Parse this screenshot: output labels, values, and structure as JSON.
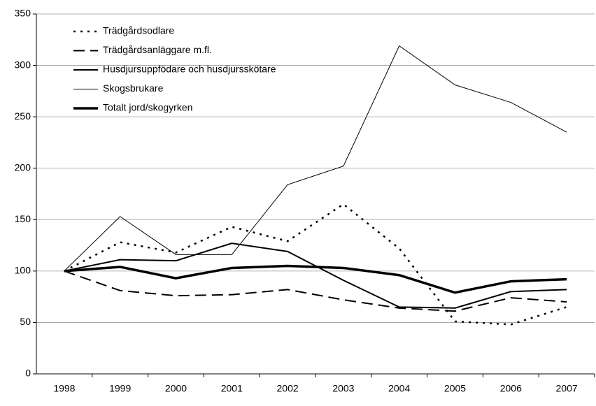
{
  "chart_data": {
    "type": "line",
    "categories": [
      "1998",
      "1999",
      "2000",
      "2001",
      "2002",
      "2003",
      "2004",
      "2005",
      "2006",
      "2007"
    ],
    "series": [
      {
        "name": "Trädgårdsodlare",
        "color": "#000000",
        "dash": "dotted",
        "width": 2.5,
        "values": [
          100,
          128,
          118,
          143,
          129,
          165,
          122,
          51,
          48,
          65
        ]
      },
      {
        "name": "Trädgårdsanläggare m.fl.",
        "color": "#000000",
        "dash": "dashed",
        "width": 2,
        "values": [
          100,
          81,
          76,
          77,
          82,
          72,
          64,
          61,
          74,
          70
        ]
      },
      {
        "name": "Husdjursuppfödare och husdjursskötare",
        "color": "#000000",
        "dash": "solid",
        "width": 2,
        "values": [
          100,
          111,
          110,
          127,
          119,
          91,
          65,
          64,
          80,
          82
        ]
      },
      {
        "name": "Skogsbrukare",
        "color": "#000000",
        "dash": "solid",
        "width": 1,
        "values": [
          100,
          153,
          116,
          116,
          184,
          202,
          319,
          281,
          264,
          235
        ]
      },
      {
        "name": "Totalt jord/skogyrken",
        "color": "#000000",
        "dash": "solid",
        "width": 3.5,
        "values": [
          100,
          104,
          93,
          103,
          105,
          103,
          96,
          79,
          90,
          92
        ]
      }
    ],
    "ylim": [
      0,
      350
    ],
    "yticks": [
      0,
      50,
      100,
      150,
      200,
      250,
      300,
      350
    ],
    "grid": true,
    "legend": "top-left"
  }
}
